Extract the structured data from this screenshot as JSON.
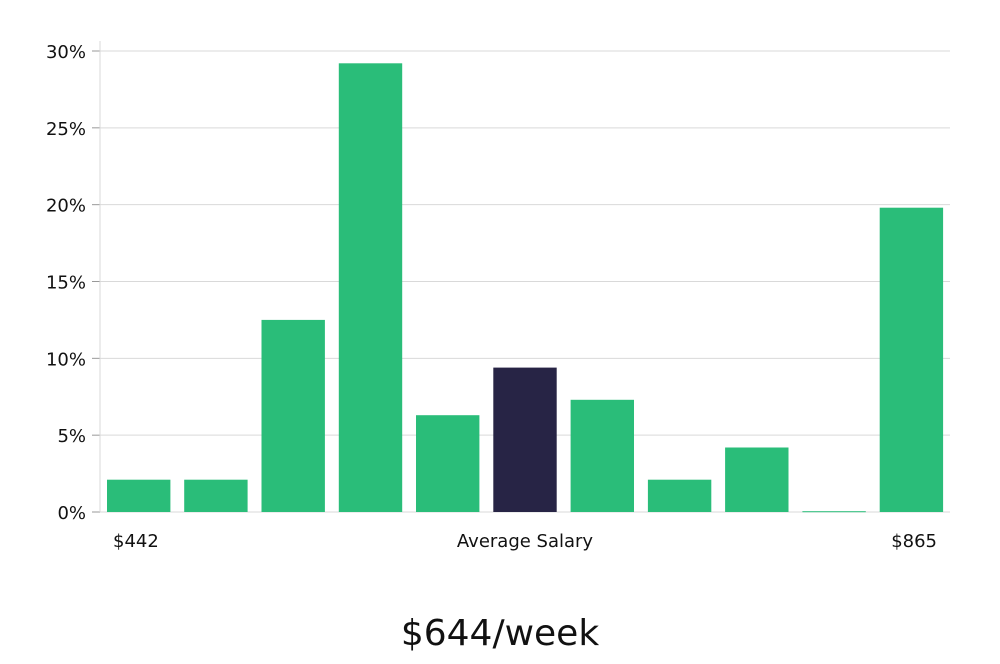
{
  "chart_data": {
    "type": "bar",
    "y_ticks": [
      0,
      5,
      10,
      15,
      20,
      25,
      30
    ],
    "y_tick_labels": [
      "0%",
      "5%",
      "10%",
      "15%",
      "20%",
      "25%",
      "30%"
    ],
    "ylim": [
      0,
      30
    ],
    "grid": true,
    "values": [
      2.1,
      2.1,
      12.5,
      29.2,
      6.3,
      9.4,
      7.3,
      2.1,
      4.2,
      0.05,
      19.8
    ],
    "highlight_index": 5,
    "colors": {
      "bar": "#2abd79",
      "highlight": "#272445",
      "grid": "#d9d9d9",
      "axis": "#999999"
    },
    "x_labels": {
      "left": "$442",
      "center": "Average Salary",
      "right": "$865"
    }
  },
  "caption": "$644/week"
}
